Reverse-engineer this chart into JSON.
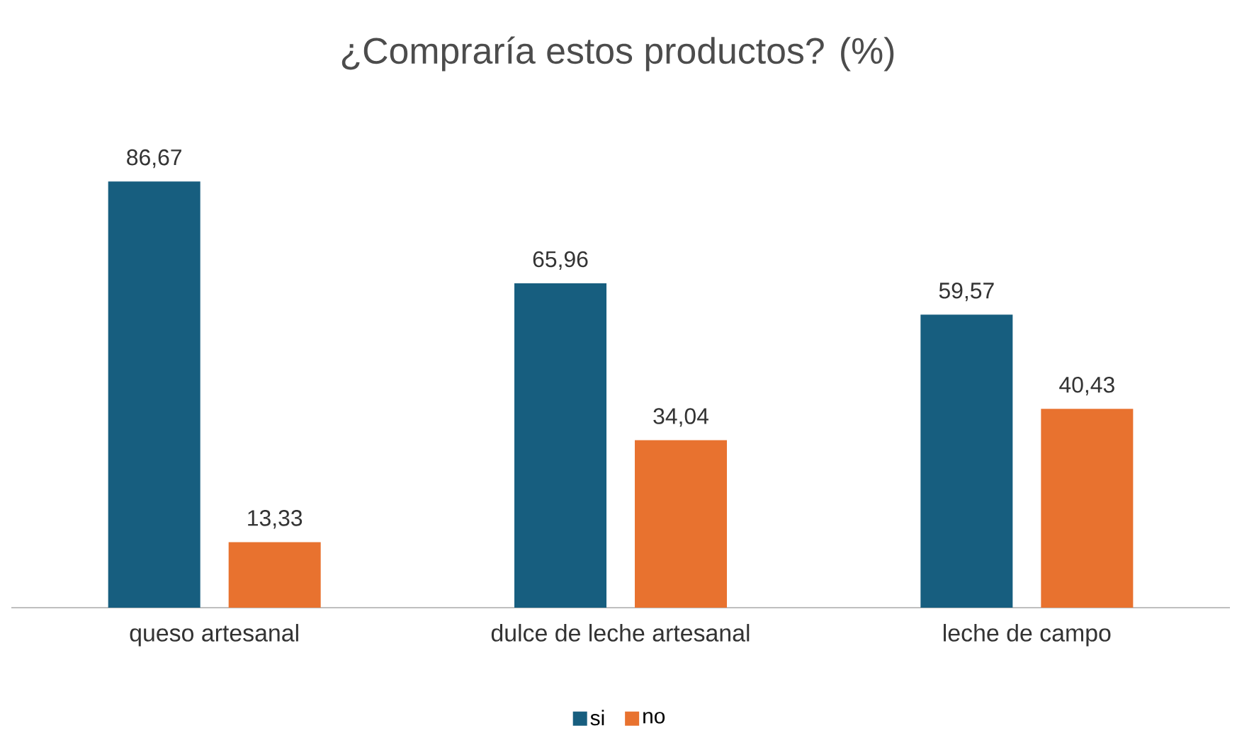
{
  "chart_data": {
    "type": "bar",
    "title": "¿Compraría estos productos? (%)",
    "categories": [
      "queso artesanal",
      "dulce de leche artesanal",
      "leche de campo"
    ],
    "series": [
      {
        "name": "si",
        "color": "#175e7f",
        "values": [
          86.67,
          65.96,
          59.57
        ],
        "value_labels": [
          "86,67",
          "65,96",
          "59,57"
        ]
      },
      {
        "name": "no",
        "color": "#e8722f",
        "values": [
          13.33,
          34.04,
          40.43
        ],
        "value_labels": [
          "13,33",
          "34,04",
          "40,43"
        ]
      }
    ],
    "legend": "bottom"
  }
}
